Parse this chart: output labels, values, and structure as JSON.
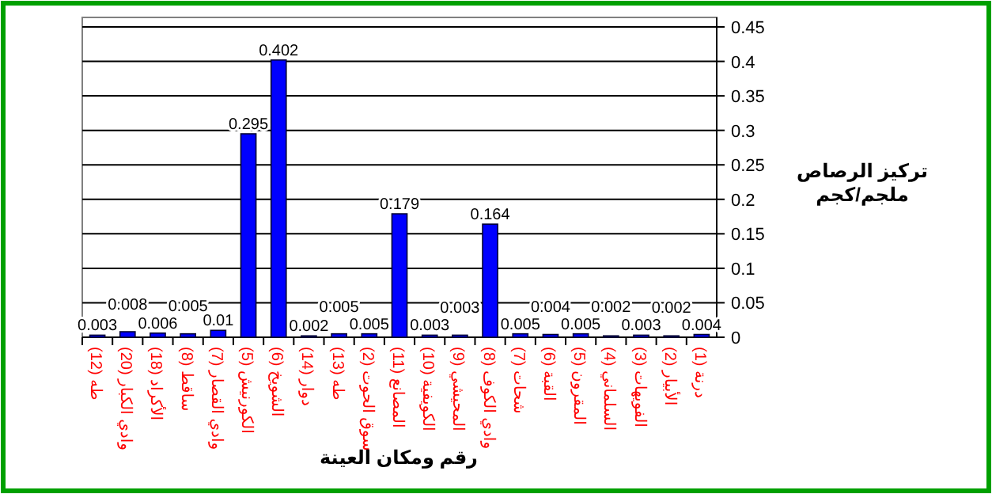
{
  "chart_data": {
    "type": "bar",
    "xlabel": "رقم ومكان العينة",
    "ylabel": "تركيز الرصاص ملجم/كجم",
    "categories": [
      "(12) طه",
      "(20) وادي الكبار",
      "(18) الأكراد",
      "(8) ساقط",
      "(7) وادي القصار",
      "(5) الكورنيش",
      "(6) الشويخ",
      "(14) دوار",
      "(13) طه",
      "(2) سوق الحوت",
      "(11) المصانع",
      "(10) الكويفية",
      "(9) المحيشي",
      "(8) وادي الكوف",
      "(7) شحات",
      "(6) القبة",
      "(5) المقرون",
      "(4) السلماني",
      "(3) الفويهات",
      "(2) الأبيار",
      "(1) درنة"
    ],
    "values": [
      0.003,
      0.008,
      0.006,
      0.005,
      0.01,
      0.295,
      0.402,
      0.002,
      0.005,
      0.005,
      0.179,
      0.003,
      0.003,
      0.164,
      0.005,
      0.004,
      0.005,
      0.002,
      0.003,
      0.002,
      0.004
    ],
    "color": "#0000ff",
    "ylim": [
      0,
      0.45
    ],
    "yticks": [
      0,
      0.05,
      0.1,
      0.15,
      0.2,
      0.25,
      0.3,
      0.35,
      0.4,
      0.45
    ],
    "grid": "y",
    "data_labels": true
  }
}
